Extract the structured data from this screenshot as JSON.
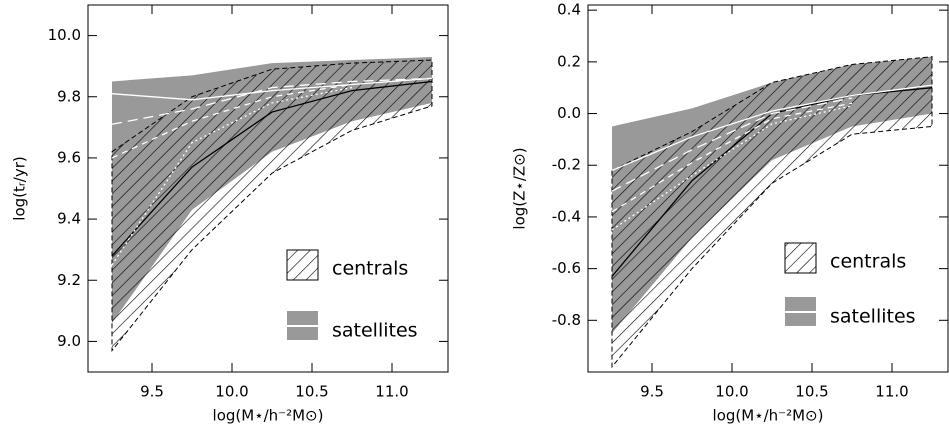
{
  "chart_data": [
    {
      "type": "line",
      "xlabel": "log(M⋆/h⁻²M⊙)",
      "ylabel": "log(tᵣ/yr)",
      "x": [
        9.25,
        9.75,
        10.25,
        10.75,
        11.25
      ],
      "xlim": [
        9.1,
        11.35
      ],
      "xticks": [
        9.5,
        {
          "value": 10,
          "label": "10.0"
        },
        10.5,
        {
          "value": 11,
          "label": "11.0"
        }
      ],
      "ylim": [
        8.9,
        10.1
      ],
      "yticks": [
        {
          "value": 9,
          "label": "9.0"
        },
        9.2,
        9.4,
        9.6,
        9.8,
        {
          "value": 10,
          "label": "10.0"
        }
      ],
      "bands": [
        {
          "name": "satellites",
          "color": "#999999",
          "upper": [
            9.85,
            9.87,
            9.91,
            9.92,
            9.93
          ],
          "lower": [
            9.06,
            9.43,
            9.62,
            9.72,
            9.78
          ]
        },
        {
          "name": "centrals",
          "color": "#000000",
          "hatch": true,
          "upper": [
            9.62,
            9.8,
            9.89,
            9.91,
            9.92
          ],
          "lower": [
            8.97,
            9.3,
            9.55,
            9.69,
            9.77
          ]
        }
      ],
      "series": [
        {
          "color": "#000000",
          "values": [
            9.28,
            9.57,
            9.75,
            9.82,
            9.85
          ]
        },
        {
          "color": "#ffffff",
          "dash": "10 6",
          "values": [
            9.71,
            9.76,
            9.83,
            9.85,
            9.86
          ]
        },
        {
          "color": "#ffffff",
          "dash": "6 5",
          "values": [
            9.6,
            9.72,
            9.8,
            9.84,
            null
          ]
        },
        {
          "color": "#ffffff",
          "dash": "2 3",
          "values": [
            9.25,
            9.65,
            9.78,
            9.83,
            null
          ]
        },
        {
          "name": "satellites",
          "color": "#ffffff",
          "values": [
            9.81,
            9.79,
            9.82,
            9.84,
            9.86
          ]
        }
      ]
    },
    {
      "type": "line",
      "xlabel": "log(M⋆/h⁻²M⊙)",
      "ylabel": "log(Z⋆/Z⊙)",
      "x": [
        9.25,
        9.75,
        10.25,
        10.75,
        11.25
      ],
      "xlim": [
        9.1,
        11.35
      ],
      "xticks": [
        9.5,
        {
          "value": 10,
          "label": "10.0"
        },
        10.5,
        {
          "value": 11,
          "label": "11.0"
        }
      ],
      "ylim": [
        -1.0,
        0.42
      ],
      "yticks": [
        -0.8,
        -0.6,
        -0.4,
        -0.2,
        {
          "value": 0,
          "label": "0.0"
        },
        0.2,
        0.4
      ],
      "bands": [
        {
          "name": "satellites",
          "color": "#999999",
          "upper": [
            -0.05,
            0.02,
            0.12,
            0.19,
            0.22
          ],
          "lower": [
            -0.85,
            -0.48,
            -0.18,
            -0.05,
            0.0
          ]
        },
        {
          "name": "centrals",
          "color": "#000000",
          "hatch": true,
          "upper": [
            -0.22,
            -0.07,
            0.12,
            0.19,
            0.22
          ],
          "lower": [
            -0.98,
            -0.6,
            -0.27,
            -0.08,
            -0.05
          ]
        }
      ],
      "series": [
        {
          "color": "#000000",
          "values": [
            -0.63,
            -0.26,
            0.0,
            0.07,
            0.1
          ]
        },
        {
          "color": "#ffffff",
          "dash": "10 6",
          "values": [
            -0.3,
            -0.14,
            0.0,
            0.06,
            null
          ]
        },
        {
          "color": "#ffffff",
          "dash": "6 5",
          "values": [
            -0.38,
            -0.19,
            -0.02,
            0.04,
            null
          ]
        },
        {
          "color": "#ffffff",
          "dash": "2 3",
          "values": [
            -0.45,
            -0.24,
            -0.04,
            0.03,
            null
          ]
        },
        {
          "name": "satellites",
          "color": "#ffffff",
          "values": [
            -0.22,
            -0.09,
            0.01,
            0.07,
            0.11
          ]
        }
      ]
    }
  ]
}
